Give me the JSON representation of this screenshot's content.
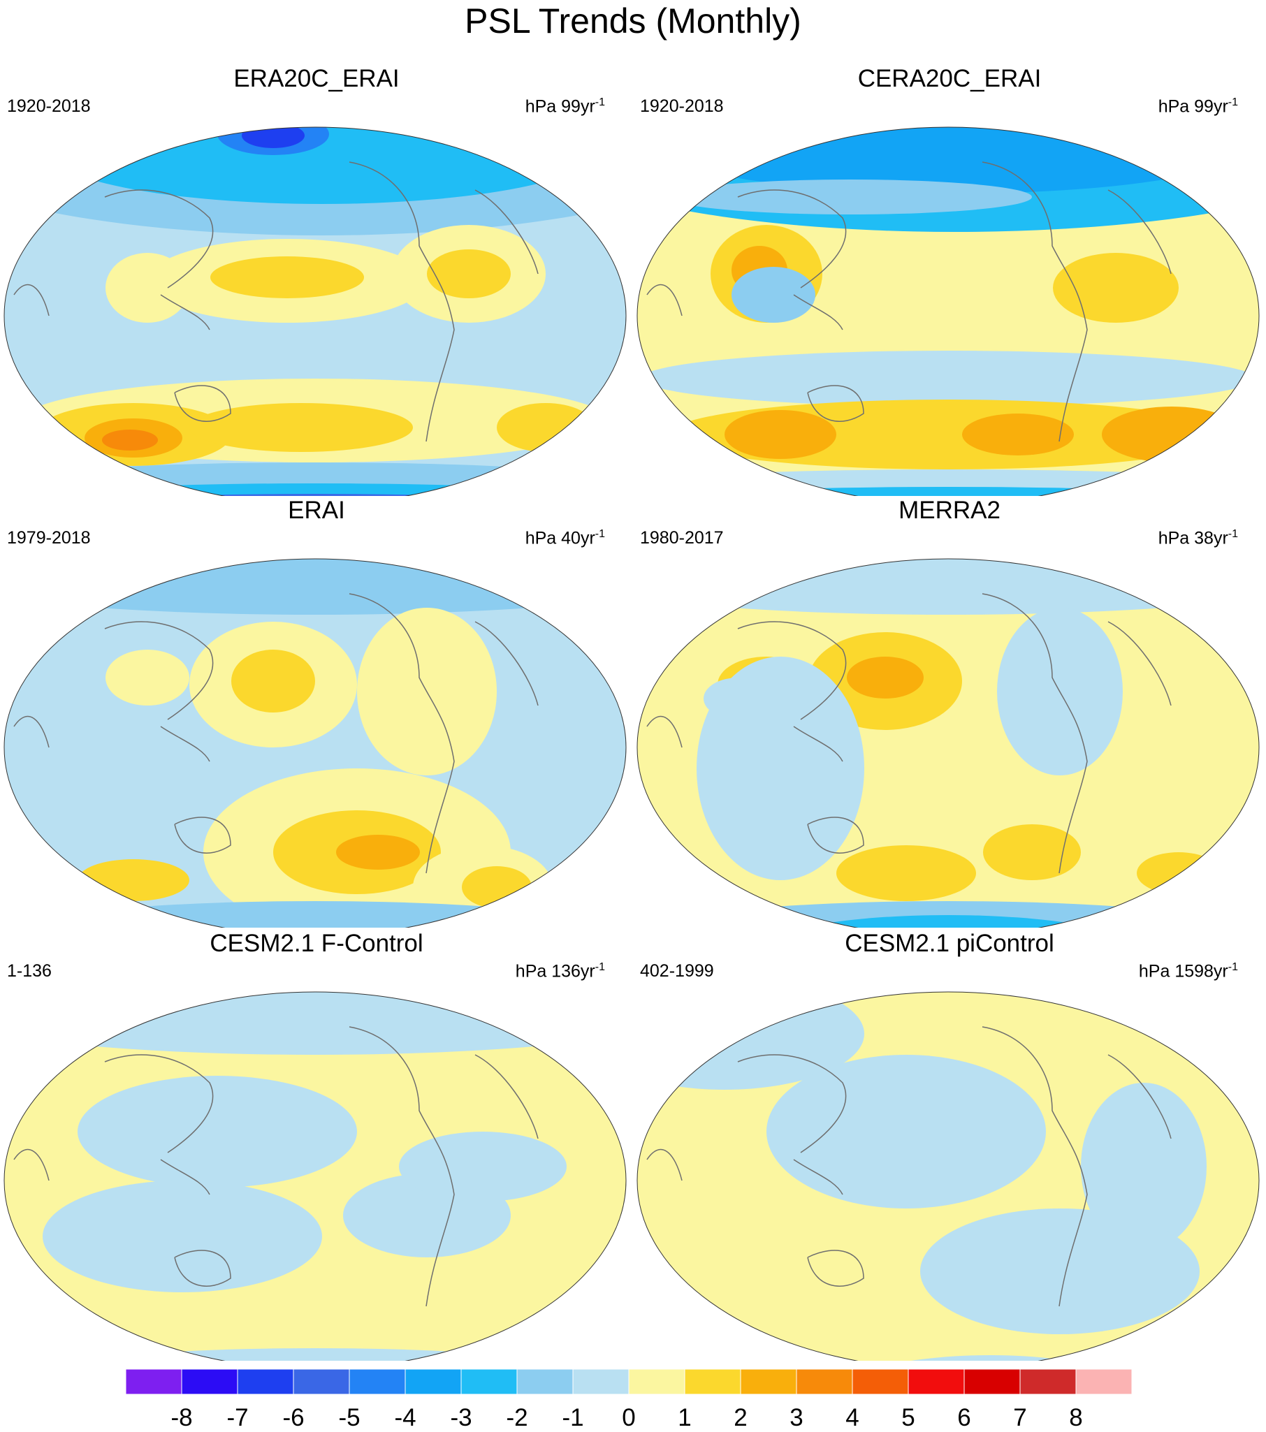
{
  "title": "PSL Trends (Monthly)",
  "panels": [
    {
      "title": "ERA20C_ERAI",
      "period": "1920-2018",
      "units": "hPa 99yr",
      "units_exp": "-1",
      "pattern": "era20c"
    },
    {
      "title": "CERA20C_ERAI",
      "period": "1920-2018",
      "units": "hPa 99yr",
      "units_exp": "-1",
      "pattern": "cera20c"
    },
    {
      "title": "ERAI",
      "period": "1979-2018",
      "units": "hPa 40yr",
      "units_exp": "-1",
      "pattern": "erai"
    },
    {
      "title": "MERRA2",
      "period": "1980-2017",
      "units": "hPa 38yr",
      "units_exp": "-1",
      "pattern": "merra2"
    },
    {
      "title": "CESM2.1 F-Control",
      "period": "1-136",
      "units": "hPa 136yr",
      "units_exp": "-1",
      "pattern": "fcontrol"
    },
    {
      "title": "CESM2.1 piControl",
      "period": "402-1999",
      "units": "hPa 1598yr",
      "units_exp": "-1",
      "pattern": "picontrol"
    }
  ],
  "colorbar": {
    "labels": [
      "-8",
      "-7",
      "-6",
      "-5",
      "-4",
      "-3",
      "-2",
      "-1",
      "0",
      "1",
      "2",
      "3",
      "4",
      "5",
      "6",
      "7",
      "8"
    ],
    "colors": [
      "#7e1ff0",
      "#2c0cf5",
      "#1e3ff0",
      "#3a67e6",
      "#2383f5",
      "#12a4f5",
      "#20bdf5",
      "#8ccdf0",
      "#b9e0f2",
      "#fbf6a0",
      "#fbd82d",
      "#f9af0c",
      "#f78a0a",
      "#f45e07",
      "#f20d0d",
      "#d80000",
      "#cf2a2a",
      "#fbb3b3"
    ]
  }
}
